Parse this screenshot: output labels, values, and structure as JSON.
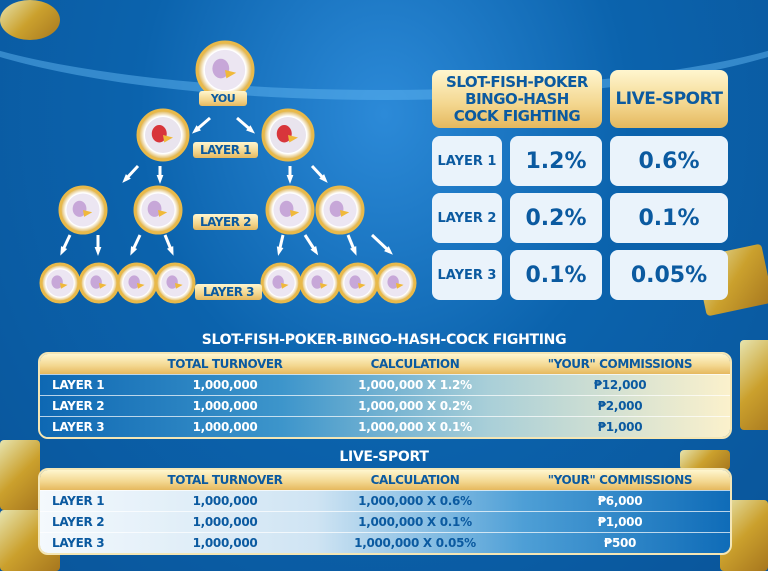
{
  "tree": {
    "you_label": "YOU",
    "layer_labels": [
      "LAYER 1",
      "LAYER 2",
      "LAYER 3"
    ]
  },
  "rates": {
    "headers": [
      "SLOT-FISH-POKER\nBINGO-HASH\nCOCK FIGHTING",
      "LIVE-SPORT"
    ],
    "rows": [
      {
        "layer": "LAYER 1",
        "slot": "1.2%",
        "sport": "0.6%"
      },
      {
        "layer": "LAYER 2",
        "slot": "0.2%",
        "sport": "0.1%"
      },
      {
        "layer": "LAYER 3",
        "slot": "0.1%",
        "sport": "0.05%"
      }
    ]
  },
  "table1": {
    "title": "SLOT-FISH-POKER-BINGO-HASH-COCK FIGHTING",
    "columns": [
      "",
      "TOTAL TURNOVER",
      "CALCULATION",
      "\"YOUR\" COMMISSIONS"
    ],
    "rows": [
      [
        "LAYER 1",
        "1,000,000",
        "1,000,000 X 1.2%",
        "₱12,000"
      ],
      [
        "LAYER 2",
        "1,000,000",
        "1,000,000 X 0.2%",
        "₱2,000"
      ],
      [
        "LAYER 3",
        "1,000,000",
        "1,000,000 X 0.1%",
        "₱1,000"
      ]
    ]
  },
  "table2": {
    "title": "LIVE-SPORT",
    "columns": [
      "",
      "TOTAL TURNOVER",
      "CALCULATION",
      "\"YOUR\" COMMISSIONS"
    ],
    "rows": [
      [
        "LAYER 1",
        "1,000,000",
        "1,000,000 X 0.6%",
        "₱6,000"
      ],
      [
        "LAYER 2",
        "1,000,000",
        "1,000,000 X 0.1%",
        "₱1,000"
      ],
      [
        "LAYER 3",
        "1,000,000",
        "1,000,000 X 0.05%",
        "₱500"
      ]
    ]
  },
  "colors": {
    "background": "#0b63ad",
    "gold": "#f3d68e",
    "text_blue": "#0b5aa0"
  }
}
